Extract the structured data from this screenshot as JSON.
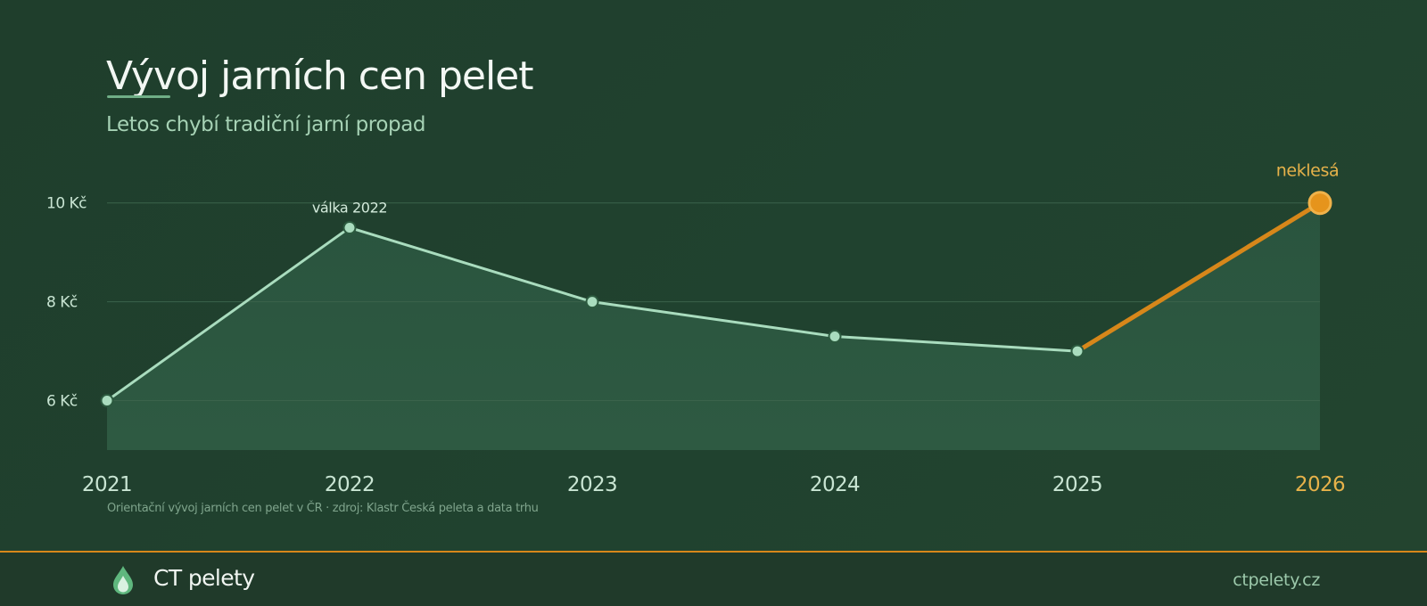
{
  "header": {
    "title": "Vývoj jarních cen pelet",
    "subtitle": "Letos chybí tradiční jarní propad"
  },
  "chart_data": {
    "type": "line",
    "title": "Vývoj jarních cen pelet",
    "subtitle": "Letos chybí tradiční jarní propad",
    "x": [
      "2021",
      "2022",
      "2023",
      "2024",
      "2025",
      "2026"
    ],
    "series": [
      {
        "values": [
          6.0,
          9.5,
          8.0,
          7.3,
          7.0,
          10.0
        ]
      }
    ],
    "highlight": {
      "from_index": 4,
      "to_index": 5,
      "color": "#d7871a"
    },
    "ylim": [
      5,
      10.5
    ],
    "yticks": [
      6,
      8,
      10
    ],
    "ytick_labels": [
      "6 Kč",
      "8 Kč",
      "10 Kč"
    ],
    "grid": true,
    "annotations": [
      {
        "x": "2022",
        "text": "válka 2022"
      },
      {
        "x": "2026",
        "text": "neklesá"
      }
    ],
    "source_note": "Orientační vývoj jarních cen pelet v ČR · zdroj: Klastr Česká peleta a data trhu"
  },
  "colors": {
    "background": "#1f3e2c",
    "line": "#a9dcbe",
    "marker_fill": "#a9dcbe",
    "marker_stroke": "#2c5a3f",
    "area_fill": "#2b5640",
    "grid": "#3b634b",
    "highlight": "#d7871a",
    "highlight_marker": "#e6941c",
    "highlight_text": "#e6b24a",
    "axis_text": "#c9e5d3",
    "annotation_text": "#d4ebdc"
  },
  "footer": {
    "brand_name": "CT pelety",
    "site_url": "ctpelety.cz",
    "logo_icon": "flame-drop-icon"
  }
}
